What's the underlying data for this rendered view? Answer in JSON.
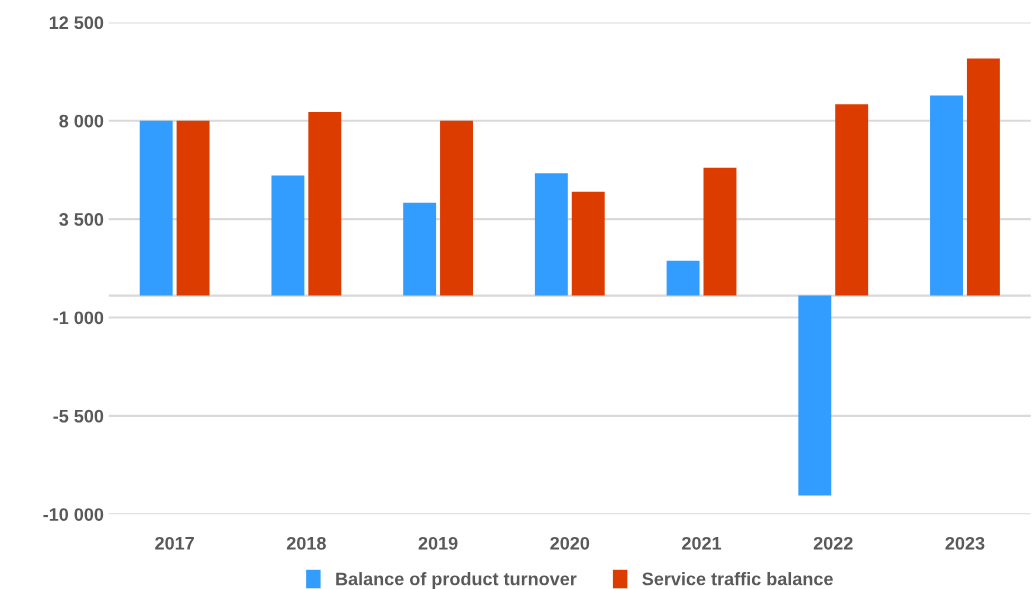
{
  "chart_data": {
    "type": "bar",
    "categories": [
      "2017",
      "2018",
      "2019",
      "2020",
      "2021",
      "2022",
      "2023"
    ],
    "series": [
      {
        "name": "Balance of product turnover",
        "color": "#339dff",
        "values": [
          8000,
          5500,
          4250,
          5600,
          1600,
          -9150,
          9150
        ]
      },
      {
        "name": "Service traffic balance",
        "color": "#dc3c00",
        "values": [
          8000,
          8400,
          8000,
          4750,
          5850,
          8750,
          10850
        ]
      }
    ],
    "ylim": [
      -10000,
      12500
    ],
    "yticks": [
      {
        "value": -10000,
        "label": "-10 000"
      },
      {
        "value": -5500,
        "label": "-5 500"
      },
      {
        "value": -1000,
        "label": "-1 000"
      },
      {
        "value": 3500,
        "label": "3 500"
      },
      {
        "value": 8000,
        "label": "8 000"
      },
      {
        "value": 12500,
        "label": "12 500"
      }
    ],
    "grid": "y",
    "legend": "bottom"
  }
}
